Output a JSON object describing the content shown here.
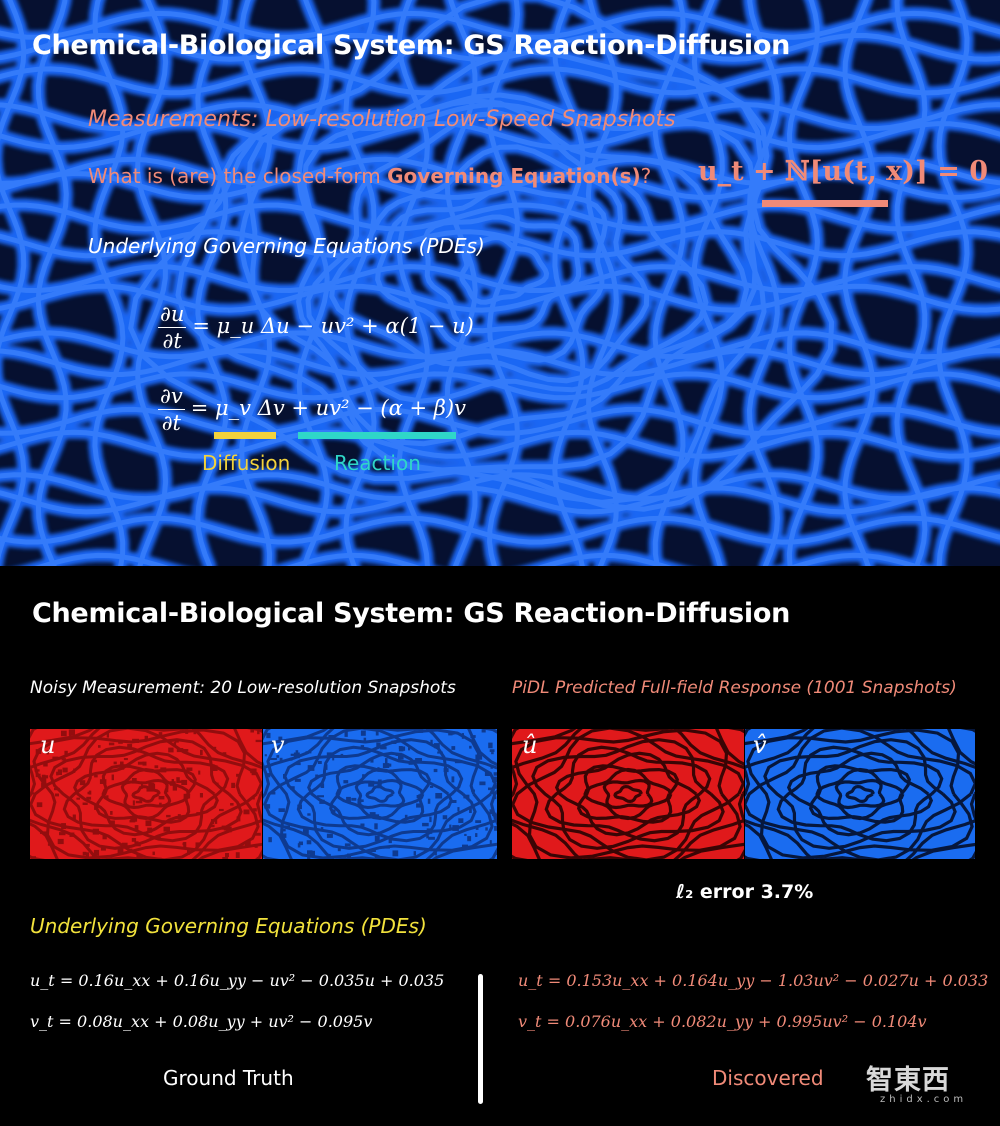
{
  "top": {
    "title": "Chemical-Biological System: GS Reaction-Diffusion",
    "measurements": "Measurements: Low-resolution Low-Speed Snapshots",
    "question_prefix": "What is (are) the closed-form ",
    "question_bold": "Governing Equation(s)",
    "question_suffix": "?",
    "general_form": "u_t + ℕ[u(t, x)] = 0",
    "underlying_label": "Underlying Governing Equations (PDEs)",
    "eq1_num": "∂u",
    "eq1_den": "∂t",
    "eq1_rhs": "= μ_u Δu − uv² + α(1 − u)",
    "eq2_num": "∂v",
    "eq2_den": "∂t",
    "eq2_rhs": "= μ_v Δv + uv² − (α + β)v",
    "diffusion_label": "Diffusion",
    "reaction_label": "Reaction",
    "diffusion_color": "#f2d23c",
    "reaction_color": "#2fd6c8",
    "underline_color": "#f08a78"
  },
  "bottom": {
    "title": "Chemical-Biological System: GS Reaction-Diffusion",
    "noisy_label": "Noisy Measurement: 20 Low-resolution Snapshots",
    "predicted_label": "PiDL Predicted Full-field Response (1001 Snapshots)",
    "panel_u": "u",
    "panel_v": "v",
    "panel_u_hat": "û",
    "panel_v_hat": "v̂",
    "error_label": "ℓ₂ error 3.7%",
    "underlying_label": "Underlying Governing Equations (PDEs)",
    "gt_eq1": "u_t = 0.16u_xx + 0.16u_yy − uv² − 0.035u + 0.035",
    "gt_eq2": "v_t = 0.08u_xx + 0.08u_yy + uv² − 0.095v",
    "disc_eq1": "u_t = 0.153u_xx + 0.164u_yy − 1.03uv² − 0.027u + 0.033",
    "disc_eq2": "v_t = 0.076u_xx + 0.082u_yy + 0.995uv² − 0.104v",
    "ground_truth_label": "Ground Truth",
    "discovered_label": "Discovered",
    "watermark": "智東西",
    "watermark_sub": "zhidx.com"
  }
}
